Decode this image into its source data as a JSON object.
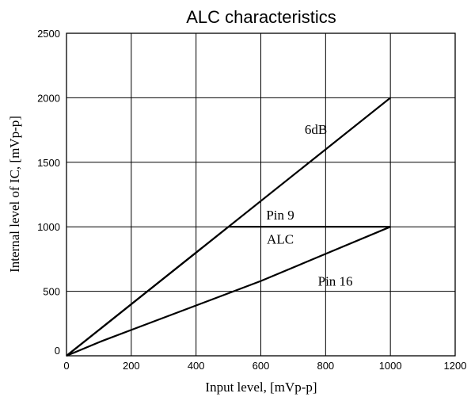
{
  "chart_data": {
    "type": "line",
    "title": "ALC characteristics",
    "xlabel": "Input level,  [mVp-p]",
    "ylabel": "Internal level of IC,  [mVp-p]",
    "xlim": [
      0,
      1200
    ],
    "ylim": [
      0,
      2500
    ],
    "x_ticks": [
      "0",
      "200",
      "400",
      "600",
      "800",
      "1000",
      "1200"
    ],
    "y_ticks": [
      "0",
      "500",
      "1000",
      "1500",
      "2000",
      "2500"
    ],
    "grid": true,
    "series": [
      {
        "x": [
          0,
          1000
        ],
        "y": [
          0,
          2000
        ]
      },
      {
        "x": [
          0,
          500,
          1000
        ],
        "y": [
          0,
          1000,
          1000
        ]
      },
      {
        "x": [
          0,
          110,
          200,
          400,
          600,
          800,
          1000
        ],
        "y": [
          0,
          115,
          200,
          390,
          580,
          790,
          1000
        ]
      }
    ],
    "annotations": [
      {
        "text": "6dB",
        "x": 770,
        "y": 1720
      },
      {
        "text": "Pin 9",
        "x": 660,
        "y": 1055
      },
      {
        "text": "ALC",
        "x": 660,
        "y": 870
      },
      {
        "text": "Pin 16",
        "x": 830,
        "y": 545
      }
    ]
  }
}
